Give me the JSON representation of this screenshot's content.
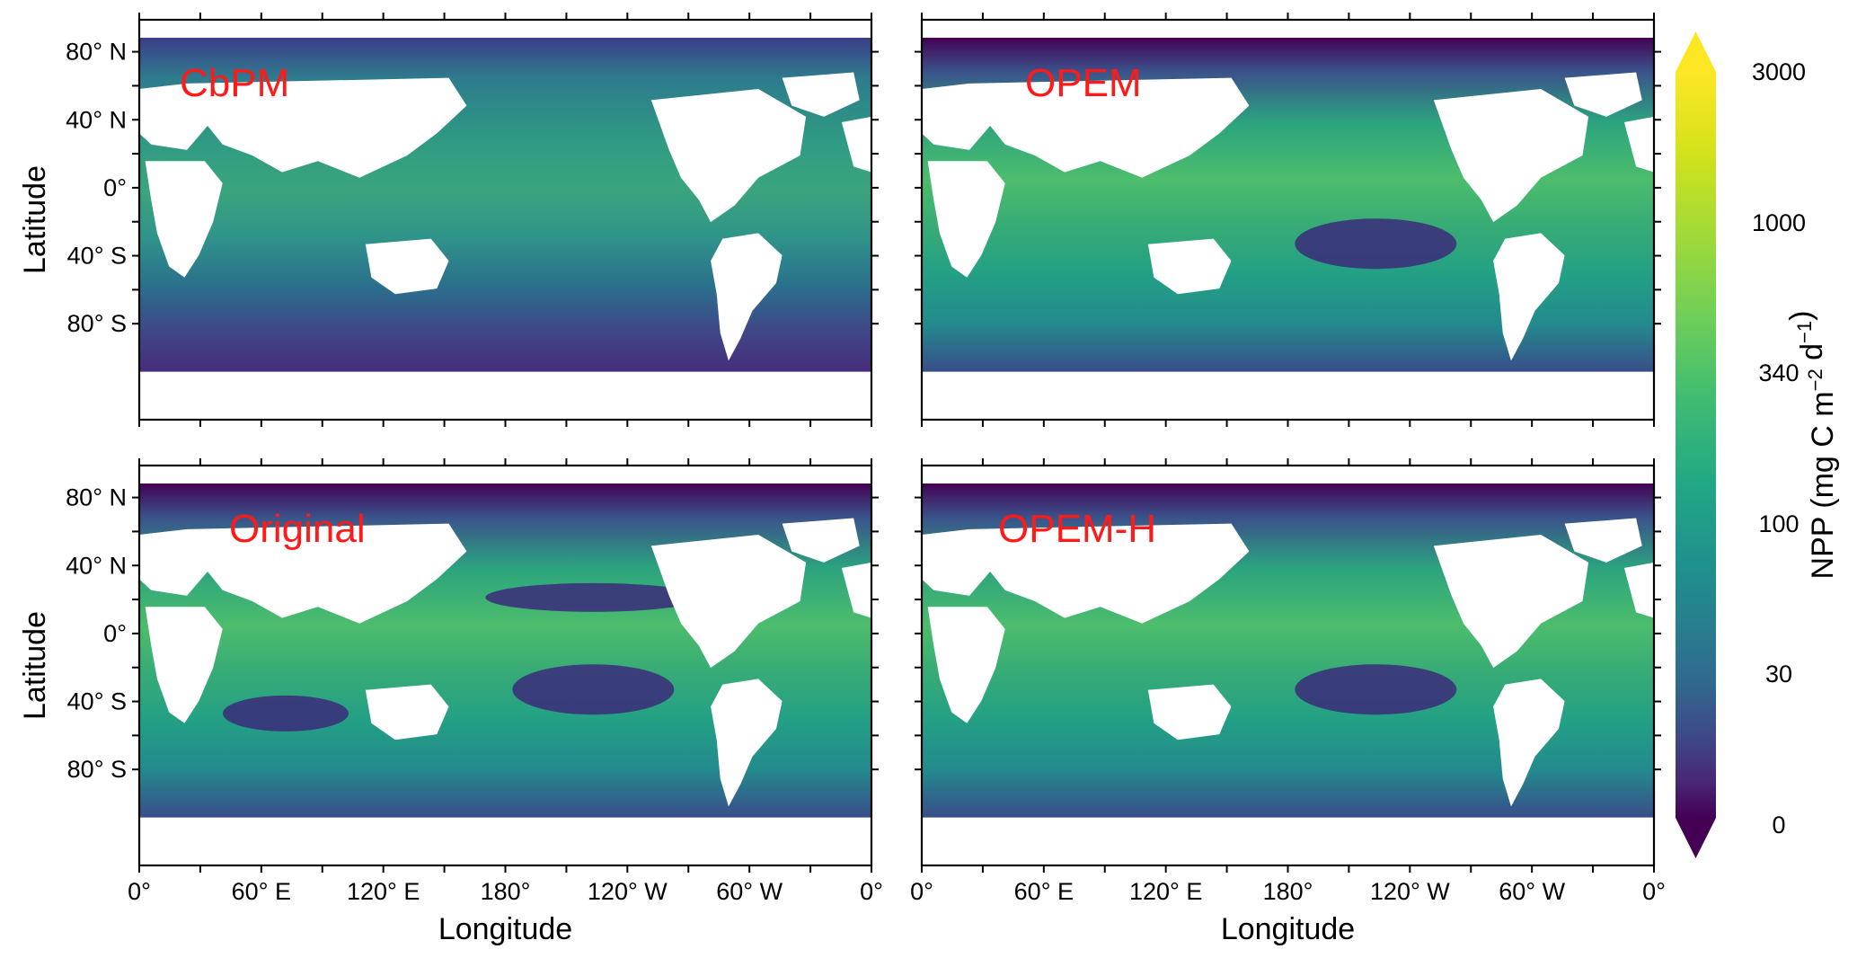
{
  "figure": {
    "panels": [
      {
        "id": "cbpm",
        "title": "CbPM"
      },
      {
        "id": "opem",
        "title": "OPEM"
      },
      {
        "id": "original",
        "title": "Original"
      },
      {
        "id": "opem-h",
        "title": "OPEM-H"
      }
    ],
    "title_color": "#ff1a1a",
    "ocean_color": "#3a9a8c",
    "land_color": "#ffffff",
    "latitude_label": "Latitude",
    "longitude_label": "Longitude",
    "lat_ticks": [
      "80° N",
      "40° N",
      "0°",
      "40° S",
      "80° S"
    ],
    "lon_ticks": [
      "0°",
      "60° E",
      "120° E",
      "180°",
      "120° W",
      "60° W",
      "0°"
    ]
  },
  "colorbar": {
    "title_main": "NPP (mg C m",
    "title_exp1": "−2",
    "title_mid": " d",
    "title_exp2": "−1",
    "title_end": ")",
    "labels": [
      "3000",
      "1000",
      "340",
      "100",
      "30",
      "0"
    ],
    "colors": [
      "#fde725",
      "#b5de2b",
      "#6ece58",
      "#35b779",
      "#1f9e89",
      "#26828e",
      "#31688e",
      "#3e4989",
      "#482878",
      "#440154"
    ],
    "extend": "both"
  }
}
